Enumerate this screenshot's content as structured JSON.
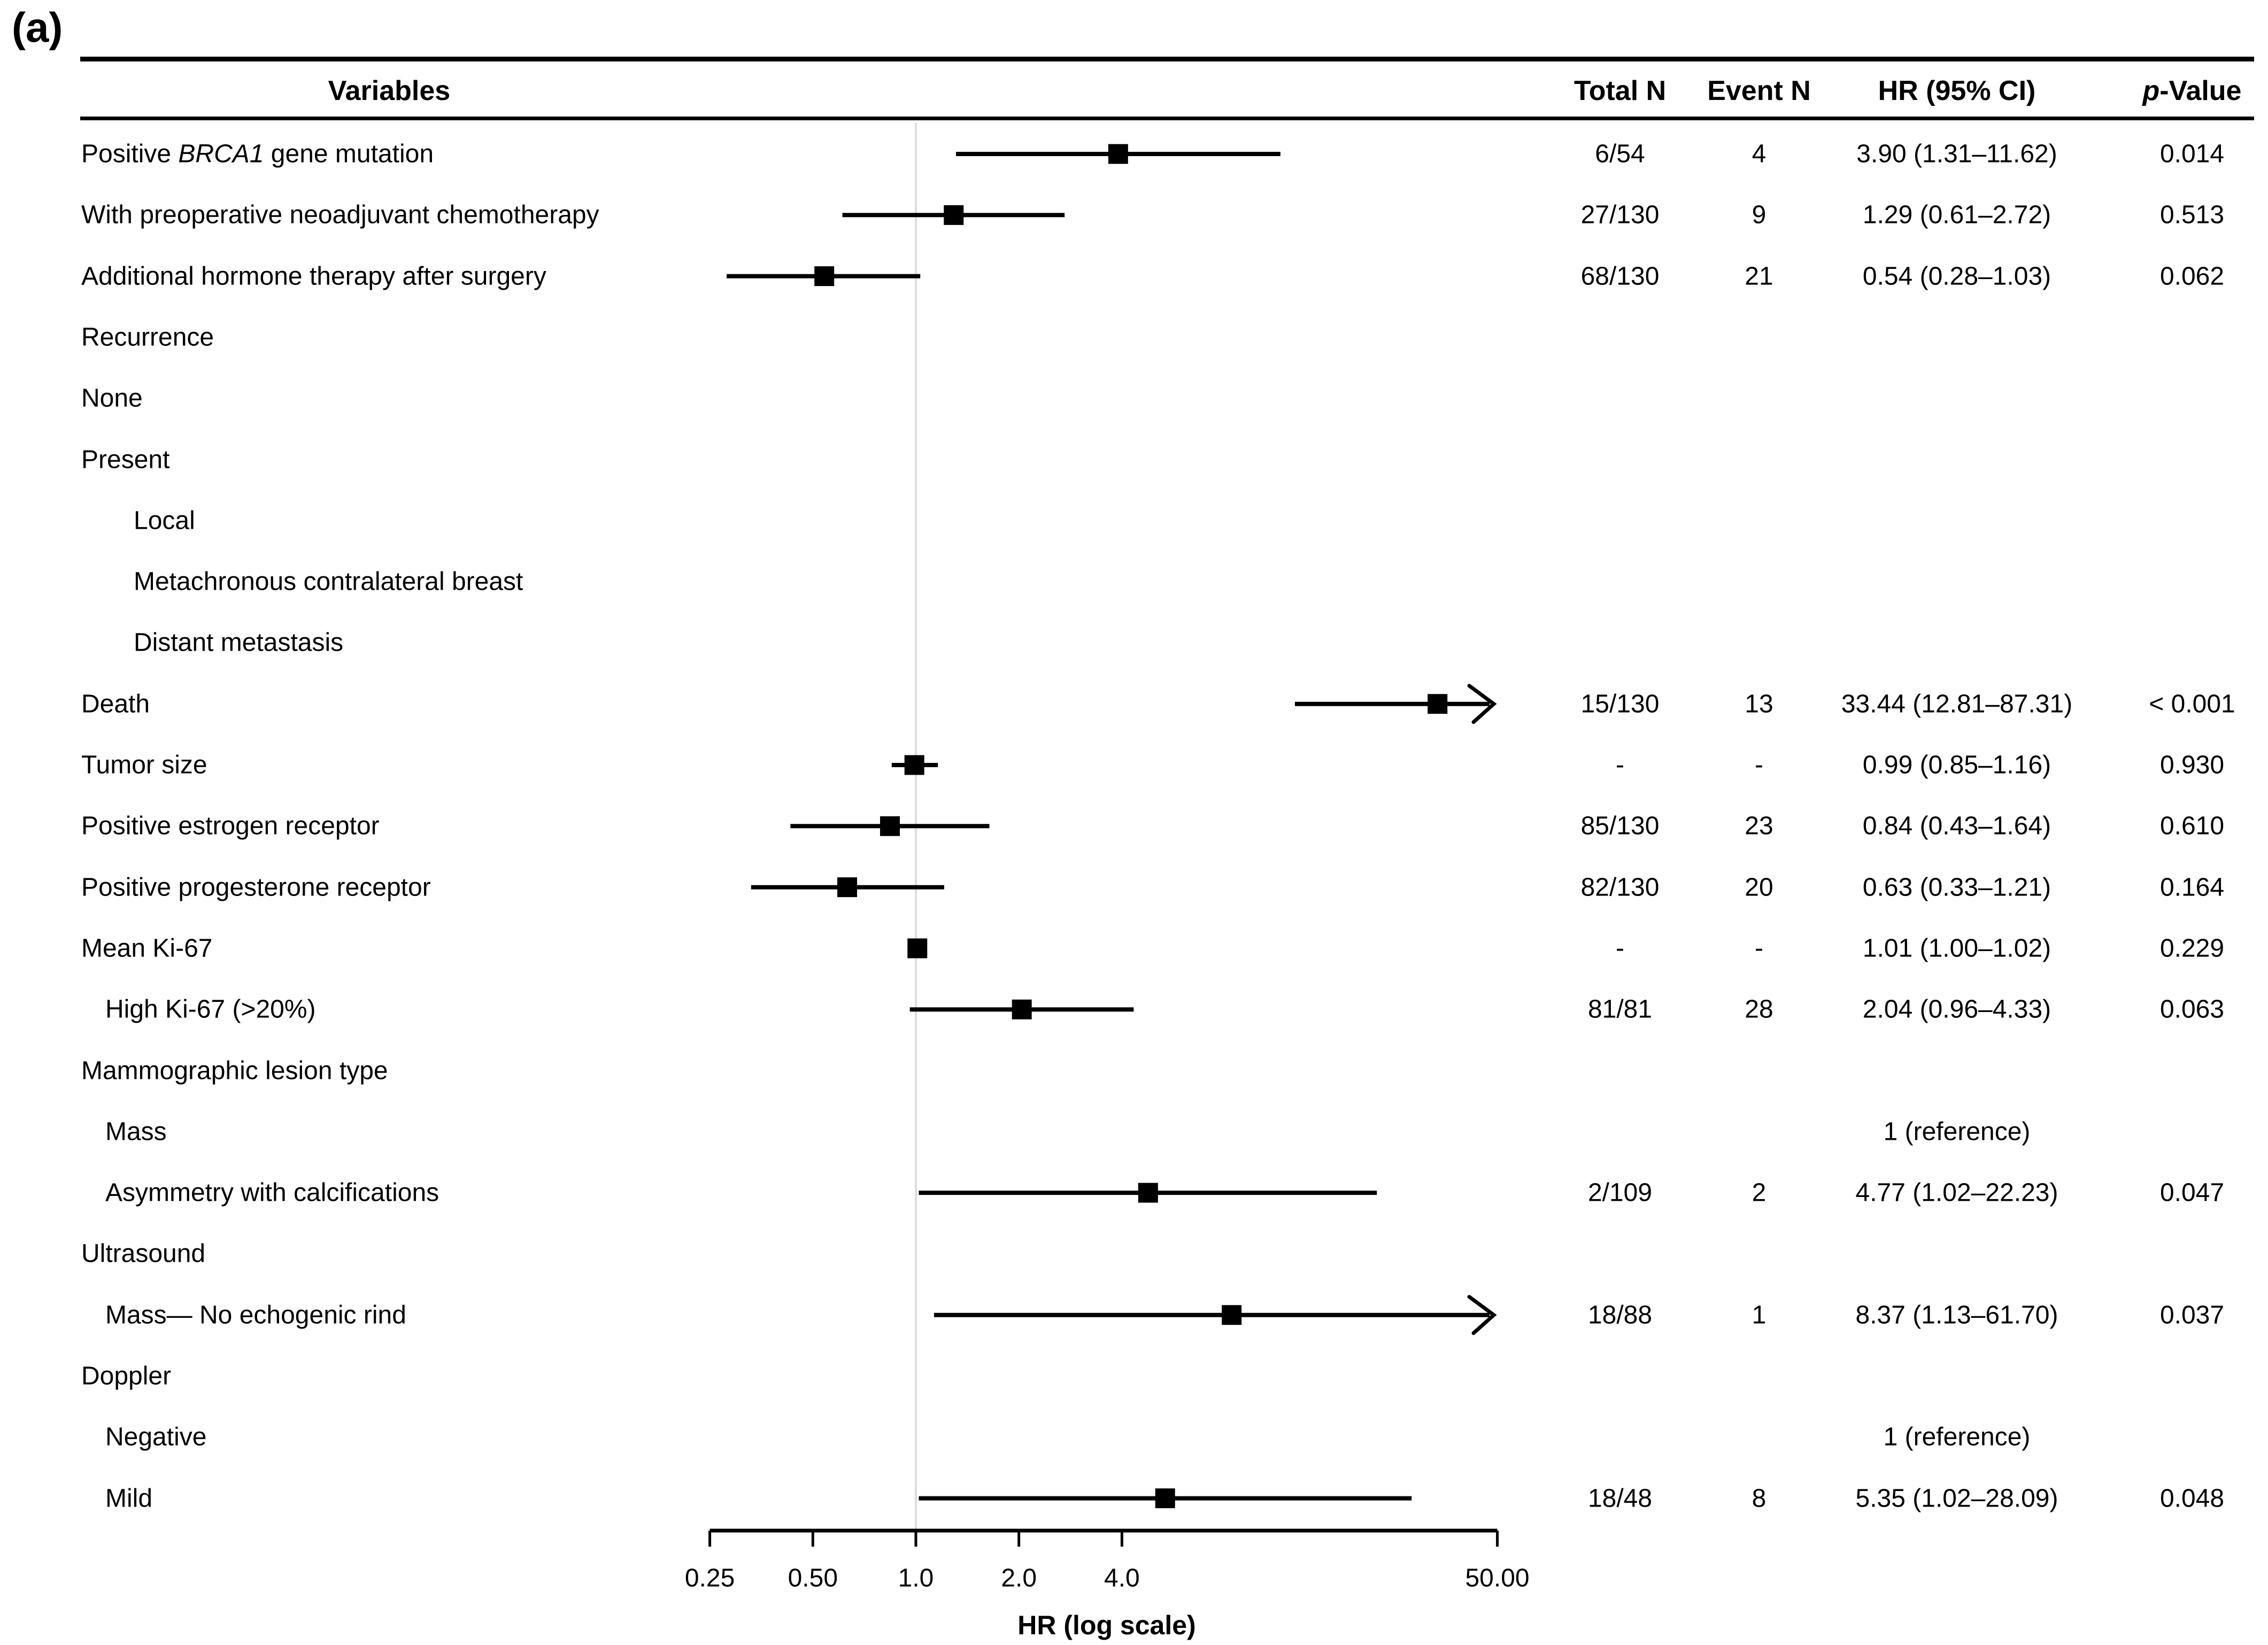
{
  "panel_label": "(a)",
  "header": {
    "variables": "Variables",
    "total_n": "Total N",
    "event_n": "Event N",
    "hr_ci": "HR (95% CI)",
    "p_italic": "p",
    "p_rest": "-Value"
  },
  "colors": {
    "text": "#000000",
    "marker": "#000000",
    "ci_line": "#000000",
    "axis": "#000000",
    "reference_line": "#dcdcdc",
    "background": "#ffffff"
  },
  "chart_data": {
    "type": "forest",
    "x_scale": "log",
    "xlabel": "HR (log scale)",
    "x_range": [
      0.25,
      50
    ],
    "x_ticks": [
      0.25,
      0.5,
      1.0,
      2.0,
      4.0,
      50.0
    ],
    "x_tick_labels": [
      "0.25",
      "0.50",
      "1.0",
      "2.0",
      "4.0",
      "50.00"
    ],
    "reference_value": 1.0,
    "columns": [
      "Variables",
      "Total N",
      "Event N",
      "HR (95% CI)",
      "p-Value"
    ],
    "rows": [
      {
        "label": "Positive BRCA1 gene mutation",
        "label_parts": [
          {
            "text": "Positive ",
            "italic": false
          },
          {
            "text": "BRCA1",
            "italic": true
          },
          {
            "text": " gene mutation",
            "italic": false
          }
        ],
        "indent": 0,
        "total_n": "6/54",
        "event_n": "4",
        "hr_ci": "3.90 (1.31–11.62)",
        "p": "0.014",
        "hr": 3.9,
        "ci_low": 1.31,
        "ci_high": 11.62,
        "arrow_high": false
      },
      {
        "label": "With preoperative neoadjuvant chemotherapy",
        "indent": 0,
        "total_n": "27/130",
        "event_n": "9",
        "hr_ci": "1.29 (0.61–2.72)",
        "p": "0.513",
        "hr": 1.29,
        "ci_low": 0.61,
        "ci_high": 2.72,
        "arrow_high": false
      },
      {
        "label": "Additional hormone therapy after surgery",
        "indent": 0,
        "total_n": "68/130",
        "event_n": "21",
        "hr_ci": "0.54 (0.28–1.03)",
        "p": "0.062",
        "hr": 0.54,
        "ci_low": 0.28,
        "ci_high": 1.03,
        "arrow_high": false
      },
      {
        "label": "Recurrence",
        "indent": 0
      },
      {
        "label": "None",
        "indent": 0
      },
      {
        "label": "Present",
        "indent": 0
      },
      {
        "label": "Local",
        "indent": 2
      },
      {
        "label": "Metachronous contralateral breast",
        "indent": 2
      },
      {
        "label": "Distant metastasis",
        "indent": 2
      },
      {
        "label": "Death",
        "indent": 0,
        "total_n": "15/130",
        "event_n": "13",
        "hr_ci": "33.44 (12.81–87.31)",
        "p": "< 0.001",
        "hr": 33.44,
        "ci_low": 12.81,
        "ci_high": 87.31,
        "arrow_high": true
      },
      {
        "label": "Tumor size",
        "indent": 0,
        "total_n": "-",
        "event_n": "-",
        "hr_ci": "0.99 (0.85–1.16)",
        "p": "0.930",
        "hr": 0.99,
        "ci_low": 0.85,
        "ci_high": 1.16,
        "arrow_high": false
      },
      {
        "label": "Positive estrogen receptor",
        "indent": 0,
        "total_n": "85/130",
        "event_n": "23",
        "hr_ci": "0.84 (0.43–1.64)",
        "p": "0.610",
        "hr": 0.84,
        "ci_low": 0.43,
        "ci_high": 1.64,
        "arrow_high": false
      },
      {
        "label": "Positive progesterone receptor",
        "indent": 0,
        "total_n": "82/130",
        "event_n": "20",
        "hr_ci": "0.63 (0.33–1.21)",
        "p": "0.164",
        "hr": 0.63,
        "ci_low": 0.33,
        "ci_high": 1.21,
        "arrow_high": false
      },
      {
        "label": "Mean Ki-67",
        "indent": 0,
        "total_n": "-",
        "event_n": "-",
        "hr_ci": "1.01 (1.00–1.02)",
        "p": "0.229",
        "hr": 1.01,
        "ci_low": 1.0,
        "ci_high": 1.02,
        "arrow_high": false
      },
      {
        "label": "High Ki-67 (>20%)",
        "indent": 1,
        "total_n": "81/81",
        "event_n": "28",
        "hr_ci": "2.04 (0.96–4.33)",
        "p": "0.063",
        "hr": 2.04,
        "ci_low": 0.96,
        "ci_high": 4.33,
        "arrow_high": false
      },
      {
        "label": "Mammographic lesion type",
        "indent": 0
      },
      {
        "label": "Mass",
        "indent": 1,
        "hr_ci": "1 (reference)"
      },
      {
        "label": "Asymmetry with calcifications",
        "indent": 1,
        "total_n": "2/109",
        "event_n": "2",
        "hr_ci": "4.77 (1.02–22.23)",
        "p": "0.047",
        "hr": 4.77,
        "ci_low": 1.02,
        "ci_high": 22.23,
        "arrow_high": false
      },
      {
        "label": "Ultrasound",
        "indent": 0
      },
      {
        "label": "Mass— No echogenic rind",
        "indent": 1,
        "total_n": "18/88",
        "event_n": "1",
        "hr_ci": "8.37 (1.13–61.70)",
        "p": "0.037",
        "hr": 8.37,
        "ci_low": 1.13,
        "ci_high": 61.7,
        "arrow_high": true
      },
      {
        "label": "Doppler",
        "indent": 0
      },
      {
        "label": "Negative",
        "indent": 1,
        "hr_ci": "1 (reference)"
      },
      {
        "label": "Mild",
        "indent": 1,
        "total_n": "18/48",
        "event_n": "8",
        "hr_ci": "5.35 (1.02–28.09)",
        "p": "0.048",
        "hr": 5.35,
        "ci_low": 1.02,
        "ci_high": 28.09,
        "arrow_high": false
      }
    ]
  }
}
